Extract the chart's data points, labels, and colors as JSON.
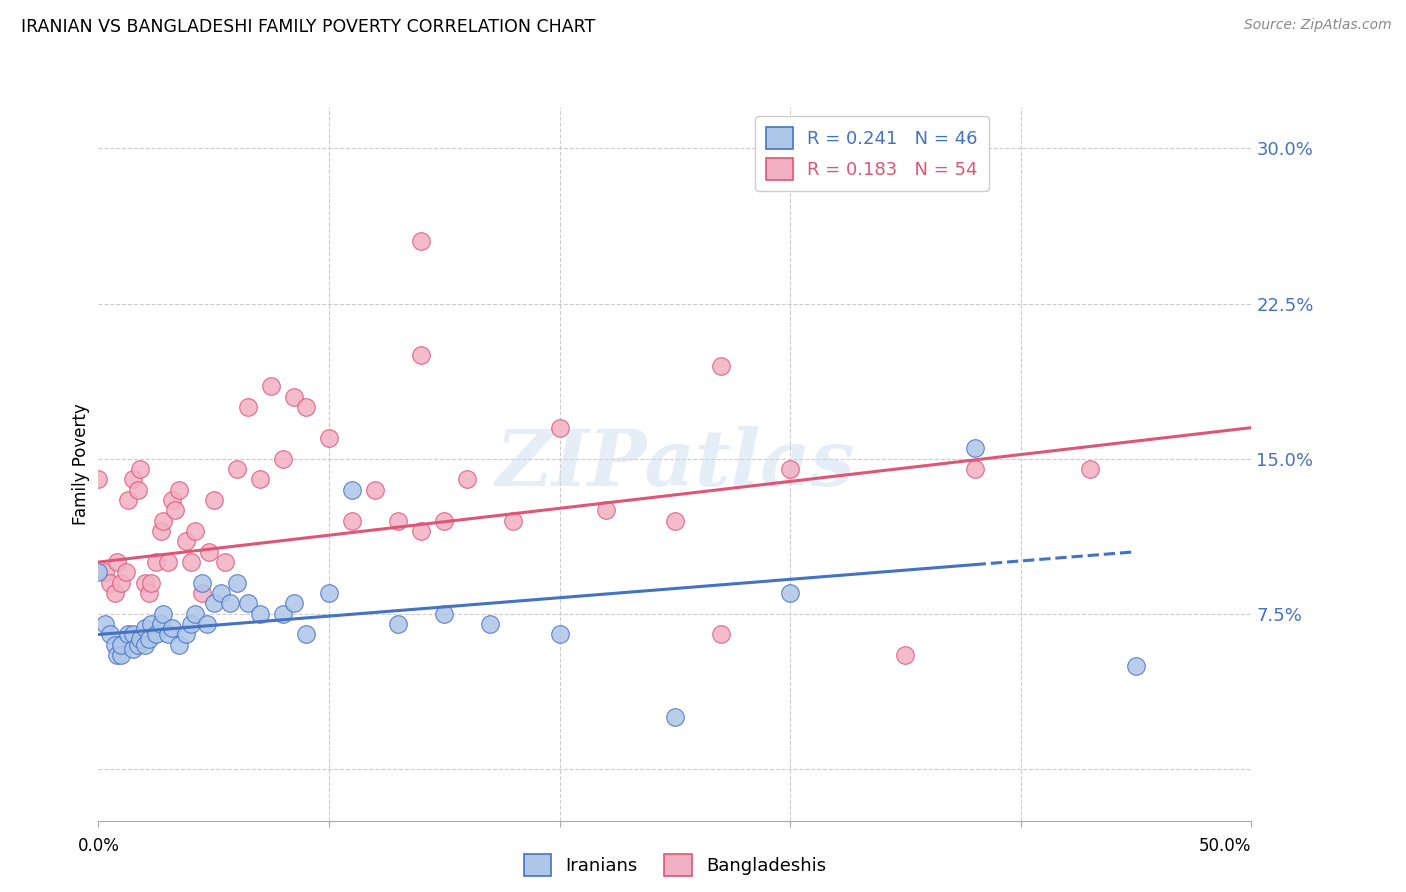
{
  "title": "IRANIAN VS BANGLADESHI FAMILY POVERTY CORRELATION CHART",
  "source": "Source: ZipAtlas.com",
  "ylabel": "Family Poverty",
  "yticks": [
    0.0,
    0.075,
    0.15,
    0.225,
    0.3
  ],
  "ytick_labels": [
    "",
    "7.5%",
    "15.0%",
    "22.5%",
    "30.0%"
  ],
  "xlim": [
    0.0,
    0.5
  ],
  "ylim": [
    -0.025,
    0.32
  ],
  "iranian_color": "#aec6e8",
  "bangladeshi_color": "#f2b0c4",
  "iranian_line_color": "#4472c4",
  "bangladeshi_line_color": "#e05575",
  "iranian_R": 0.241,
  "iranian_N": 46,
  "bangladeshi_R": 0.183,
  "bangladeshi_N": 54,
  "watermark_text": "ZIPatlas",
  "iran_line_x0": 0.0,
  "iran_line_y0": 0.065,
  "iran_line_x1": 0.45,
  "iran_line_y1": 0.105,
  "iran_line_solid_end": 0.38,
  "bang_line_x0": 0.0,
  "bang_line_y0": 0.1,
  "bang_line_x1": 0.5,
  "bang_line_y1": 0.165,
  "iranian_points_x": [
    0.0,
    0.003,
    0.005,
    0.007,
    0.008,
    0.01,
    0.01,
    0.013,
    0.015,
    0.015,
    0.017,
    0.018,
    0.02,
    0.02,
    0.022,
    0.023,
    0.025,
    0.027,
    0.028,
    0.03,
    0.032,
    0.035,
    0.038,
    0.04,
    0.042,
    0.045,
    0.047,
    0.05,
    0.053,
    0.057,
    0.06,
    0.065,
    0.07,
    0.08,
    0.085,
    0.09,
    0.1,
    0.11,
    0.13,
    0.15,
    0.17,
    0.2,
    0.25,
    0.3,
    0.38,
    0.45
  ],
  "iranian_points_y": [
    0.095,
    0.07,
    0.065,
    0.06,
    0.055,
    0.055,
    0.06,
    0.065,
    0.058,
    0.065,
    0.06,
    0.063,
    0.06,
    0.068,
    0.063,
    0.07,
    0.065,
    0.07,
    0.075,
    0.065,
    0.068,
    0.06,
    0.065,
    0.07,
    0.075,
    0.09,
    0.07,
    0.08,
    0.085,
    0.08,
    0.09,
    0.08,
    0.075,
    0.075,
    0.08,
    0.065,
    0.085,
    0.135,
    0.07,
    0.075,
    0.07,
    0.065,
    0.025,
    0.085,
    0.155,
    0.05
  ],
  "bangladeshi_points_x": [
    0.0,
    0.003,
    0.005,
    0.007,
    0.008,
    0.01,
    0.012,
    0.013,
    0.015,
    0.017,
    0.018,
    0.02,
    0.022,
    0.023,
    0.025,
    0.027,
    0.028,
    0.03,
    0.032,
    0.033,
    0.035,
    0.038,
    0.04,
    0.042,
    0.045,
    0.048,
    0.05,
    0.055,
    0.06,
    0.065,
    0.07,
    0.075,
    0.08,
    0.085,
    0.09,
    0.1,
    0.11,
    0.12,
    0.13,
    0.14,
    0.15,
    0.16,
    0.18,
    0.2,
    0.22,
    0.25,
    0.27,
    0.3,
    0.35,
    0.38,
    0.14,
    0.14,
    0.27,
    0.43
  ],
  "bangladeshi_points_y": [
    0.14,
    0.095,
    0.09,
    0.085,
    0.1,
    0.09,
    0.095,
    0.13,
    0.14,
    0.135,
    0.145,
    0.09,
    0.085,
    0.09,
    0.1,
    0.115,
    0.12,
    0.1,
    0.13,
    0.125,
    0.135,
    0.11,
    0.1,
    0.115,
    0.085,
    0.105,
    0.13,
    0.1,
    0.145,
    0.175,
    0.14,
    0.185,
    0.15,
    0.18,
    0.175,
    0.16,
    0.12,
    0.135,
    0.12,
    0.115,
    0.12,
    0.14,
    0.12,
    0.165,
    0.125,
    0.12,
    0.065,
    0.145,
    0.055,
    0.145,
    0.255,
    0.2,
    0.195,
    0.145
  ]
}
